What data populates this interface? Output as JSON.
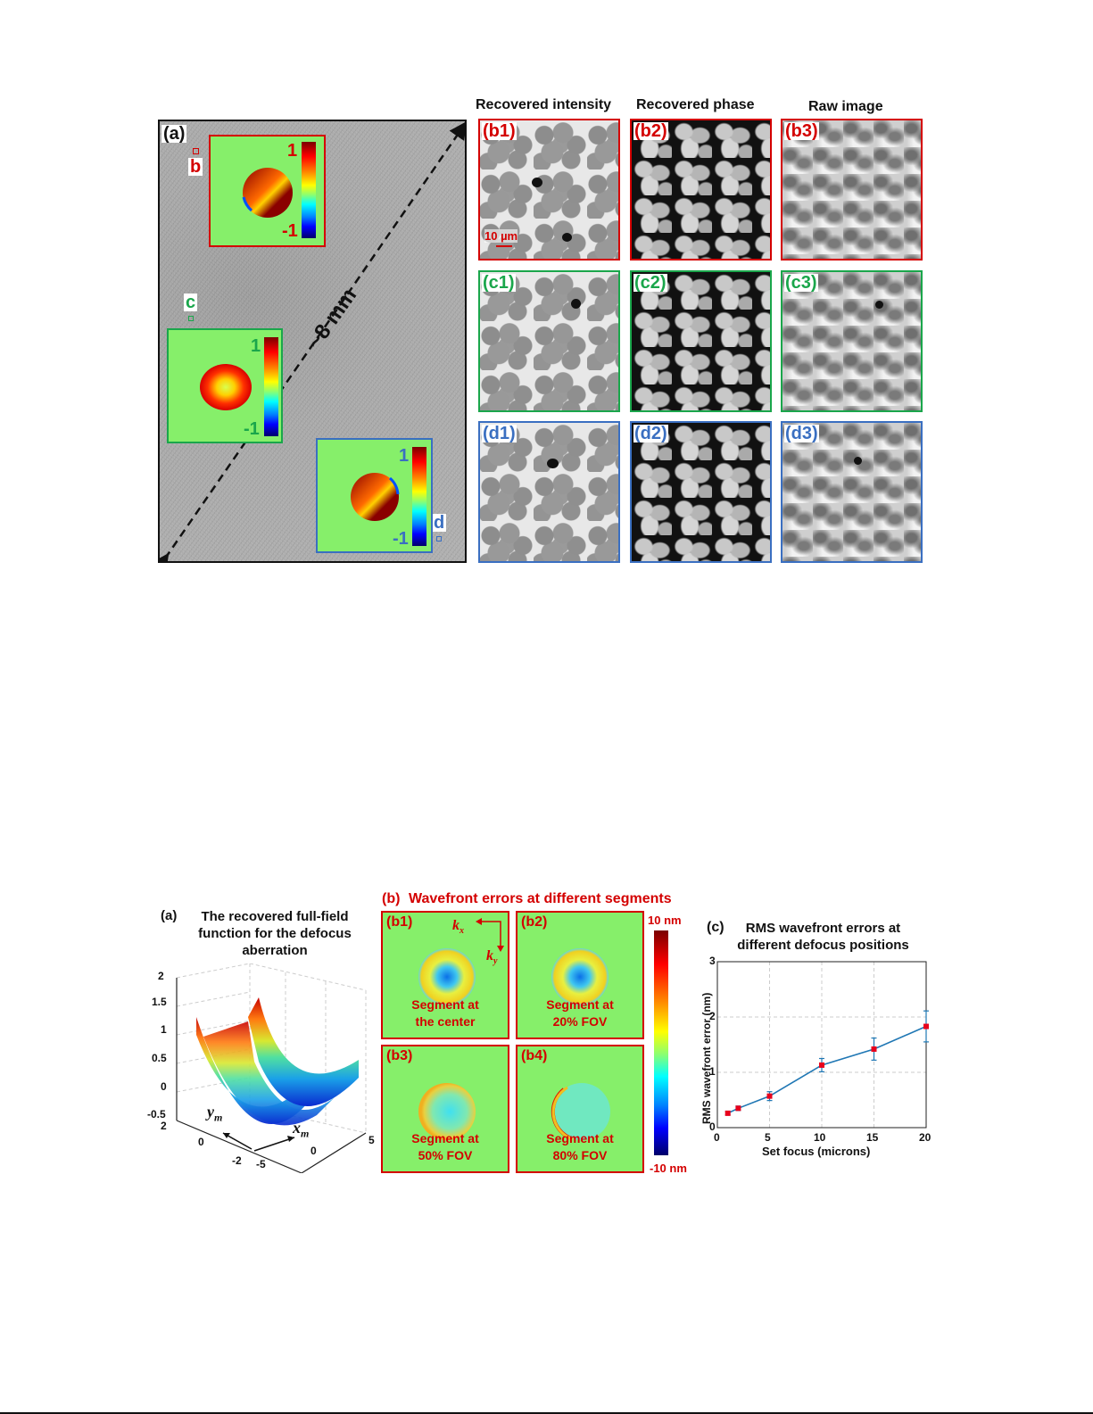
{
  "figure_top": {
    "panel_a": {
      "label": "(a)",
      "scale_label": "~8 mm",
      "regions": [
        {
          "id": "b",
          "label": "b",
          "color": "#d40000",
          "colorbar_max": "1",
          "colorbar_min": "-1"
        },
        {
          "id": "c",
          "label": "c",
          "color": "#1aa64b",
          "colorbar_max": "1",
          "colorbar_min": "-1"
        },
        {
          "id": "d",
          "label": "d",
          "color": "#3a6fc1",
          "colorbar_max": "1",
          "colorbar_min": "-1"
        }
      ]
    },
    "column_headers": [
      "Recovered intensity",
      "Recovered phase",
      "Raw image"
    ],
    "tiles": [
      {
        "label": "(b1)",
        "type": "intensity",
        "row": "b"
      },
      {
        "label": "(b2)",
        "type": "phase",
        "row": "b"
      },
      {
        "label": "(b3)",
        "type": "raw",
        "row": "b"
      },
      {
        "label": "(c1)",
        "type": "intensity",
        "row": "c"
      },
      {
        "label": "(c2)",
        "type": "phase",
        "row": "c"
      },
      {
        "label": "(c3)",
        "type": "raw",
        "row": "c"
      },
      {
        "label": "(d1)",
        "type": "intensity",
        "row": "d"
      },
      {
        "label": "(d2)",
        "type": "phase",
        "row": "d"
      },
      {
        "label": "(d3)",
        "type": "raw",
        "row": "d"
      }
    ],
    "scale_bar": "10 µm"
  },
  "figure_bottom": {
    "panel_a": {
      "label": "(a)",
      "title_lines": [
        "The recovered full-field",
        "function for the defocus",
        "aberration"
      ],
      "z_ticks": [
        "2",
        "1.5",
        "1",
        "0.5",
        "0",
        "-0.5"
      ],
      "y_ticks": [
        "2",
        "0",
        "-2"
      ],
      "x_ticks": [
        "-5",
        "0",
        "5"
      ],
      "x_axis_label": "x",
      "x_axis_sub": "m",
      "y_axis_label": "y",
      "y_axis_sub": "m"
    },
    "panel_b": {
      "label": "(b)",
      "title": "Wavefront errors at different segments",
      "colorbar_max": "10 nm",
      "colorbar_min": "-10 nm",
      "kx": "k",
      "kx_sub": "x",
      "ky": "k",
      "ky_sub": "y",
      "segments": [
        {
          "label": "(b1)",
          "caption_lines": [
            "Segment at",
            "the center"
          ]
        },
        {
          "label": "(b2)",
          "caption_lines": [
            "Segment at",
            "20% FOV"
          ]
        },
        {
          "label": "(b3)",
          "caption_lines": [
            "Segment at",
            "50% FOV"
          ]
        },
        {
          "label": "(b4)",
          "caption_lines": [
            "Segment at",
            "80% FOV"
          ]
        }
      ]
    },
    "panel_c": {
      "label": "(c)",
      "title_lines": [
        "RMS wavefront errors at",
        "different defocus positions"
      ],
      "xlabel": "Set focus (microns)",
      "ylabel": "RMS wavefront error (nm)",
      "x_ticks": [
        "0",
        "5",
        "10",
        "15",
        "20"
      ],
      "y_ticks": [
        "0",
        "1",
        "2",
        "3"
      ]
    }
  },
  "chart_data": {
    "type": "line",
    "title": "RMS wavefront errors at different defocus positions",
    "xlabel": "Set focus (microns)",
    "ylabel": "RMS wavefront error (nm)",
    "x": [
      1,
      2,
      5,
      10,
      15,
      20
    ],
    "series": [
      {
        "name": "RMS wavefront error",
        "values": [
          0.26,
          0.35,
          0.57,
          1.13,
          1.42,
          1.83
        ],
        "error": [
          0.03,
          0.04,
          0.08,
          0.12,
          0.2,
          0.28
        ]
      }
    ],
    "xlim": [
      0,
      20
    ],
    "ylim": [
      0,
      3
    ],
    "grid": true,
    "line_color": "#1f77b4",
    "marker_color": "#e8001c"
  }
}
